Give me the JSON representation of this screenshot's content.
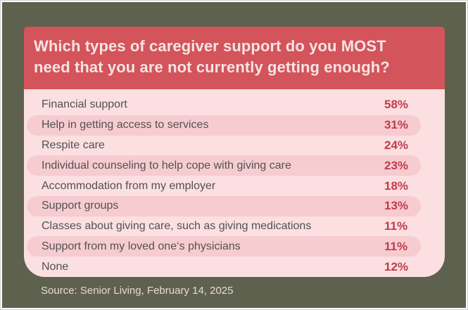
{
  "colors": {
    "canvas-bg": "#5e614e",
    "header-bg": "#d3545a",
    "header-text": "#f6e4e4",
    "panel-bg": "#fbdfe1",
    "stripe-bg": "#f6ccd1",
    "label-text": "#525252",
    "percent-text": "#c23c4c",
    "source-text": "#e9d8d4"
  },
  "header": {
    "title_line1": "Which types of caregiver support do you MOST",
    "title_line2": "need that you are not currently getting enough?"
  },
  "rows": [
    {
      "label": "Financial support",
      "percent": "58%"
    },
    {
      "label": "Help in getting access to services",
      "percent": "31%"
    },
    {
      "label": "Respite care",
      "percent": "24%"
    },
    {
      "label": "Individual counseling to help cope with giving care",
      "percent": "23%"
    },
    {
      "label": "Accommodation from my employer",
      "percent": "18%"
    },
    {
      "label": "Support groups",
      "percent": "13%"
    },
    {
      "label": "Classes about giving care, such as giving medications",
      "percent": "11%"
    },
    {
      "label": "Support from my loved one‘s physicians",
      "percent": "11%"
    },
    {
      "label": "None",
      "percent": "12%"
    }
  ],
  "source": {
    "text": "Source: Senior Living, February 14, 2025"
  },
  "chart_data": {
    "type": "table",
    "title": "Which types of caregiver support do you MOST need that you are not currently getting enough?",
    "categories": [
      "Financial support",
      "Help in getting access to services",
      "Respite care",
      "Individual counseling to help cope with giving care",
      "Accommodation from my employer",
      "Support groups",
      "Classes about giving care, such as giving medications",
      "Support from my loved one‘s physicians",
      "None"
    ],
    "values": [
      58,
      31,
      24,
      23,
      18,
      13,
      11,
      11,
      12
    ],
    "unit": "%",
    "source": "Senior Living, February 14, 2025",
    "layout_hints": {
      "striped_rows": "even rows (2nd, 4th, 6th, 8th) have darker pink pill background",
      "value_column": "right side, bold crimson",
      "grid": false,
      "legend": false
    }
  }
}
